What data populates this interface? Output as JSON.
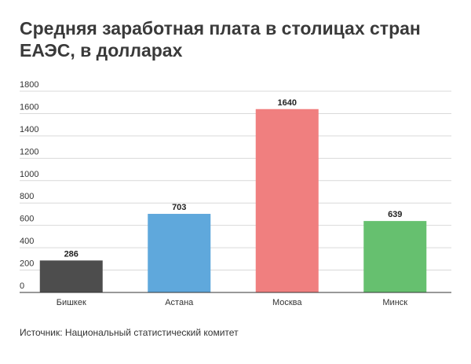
{
  "chart_data": {
    "type": "bar",
    "title": "Средняя заработная плата в столицах стран ЕАЭС, в долларах",
    "xlabel": "",
    "ylabel": "",
    "categories": [
      "Бишкек",
      "Астана",
      "Москва",
      "Минск"
    ],
    "values": [
      286,
      703,
      1640,
      639
    ],
    "data_labels": [
      "286",
      "703",
      "1640",
      "639"
    ],
    "colors": [
      "#4d4d4d",
      "#5fa8dc",
      "#f07f7f",
      "#66c06f"
    ],
    "ylim": [
      0,
      1800
    ],
    "yticks": [
      0,
      200,
      400,
      600,
      800,
      1000,
      1200,
      1400,
      1600,
      1800
    ],
    "grid": true,
    "legend": "none"
  },
  "source": "Источник: Национальный статистический комитет",
  "colors": {
    "grid": "#d9d9d9",
    "axis": "#333333",
    "text": "#333333"
  }
}
